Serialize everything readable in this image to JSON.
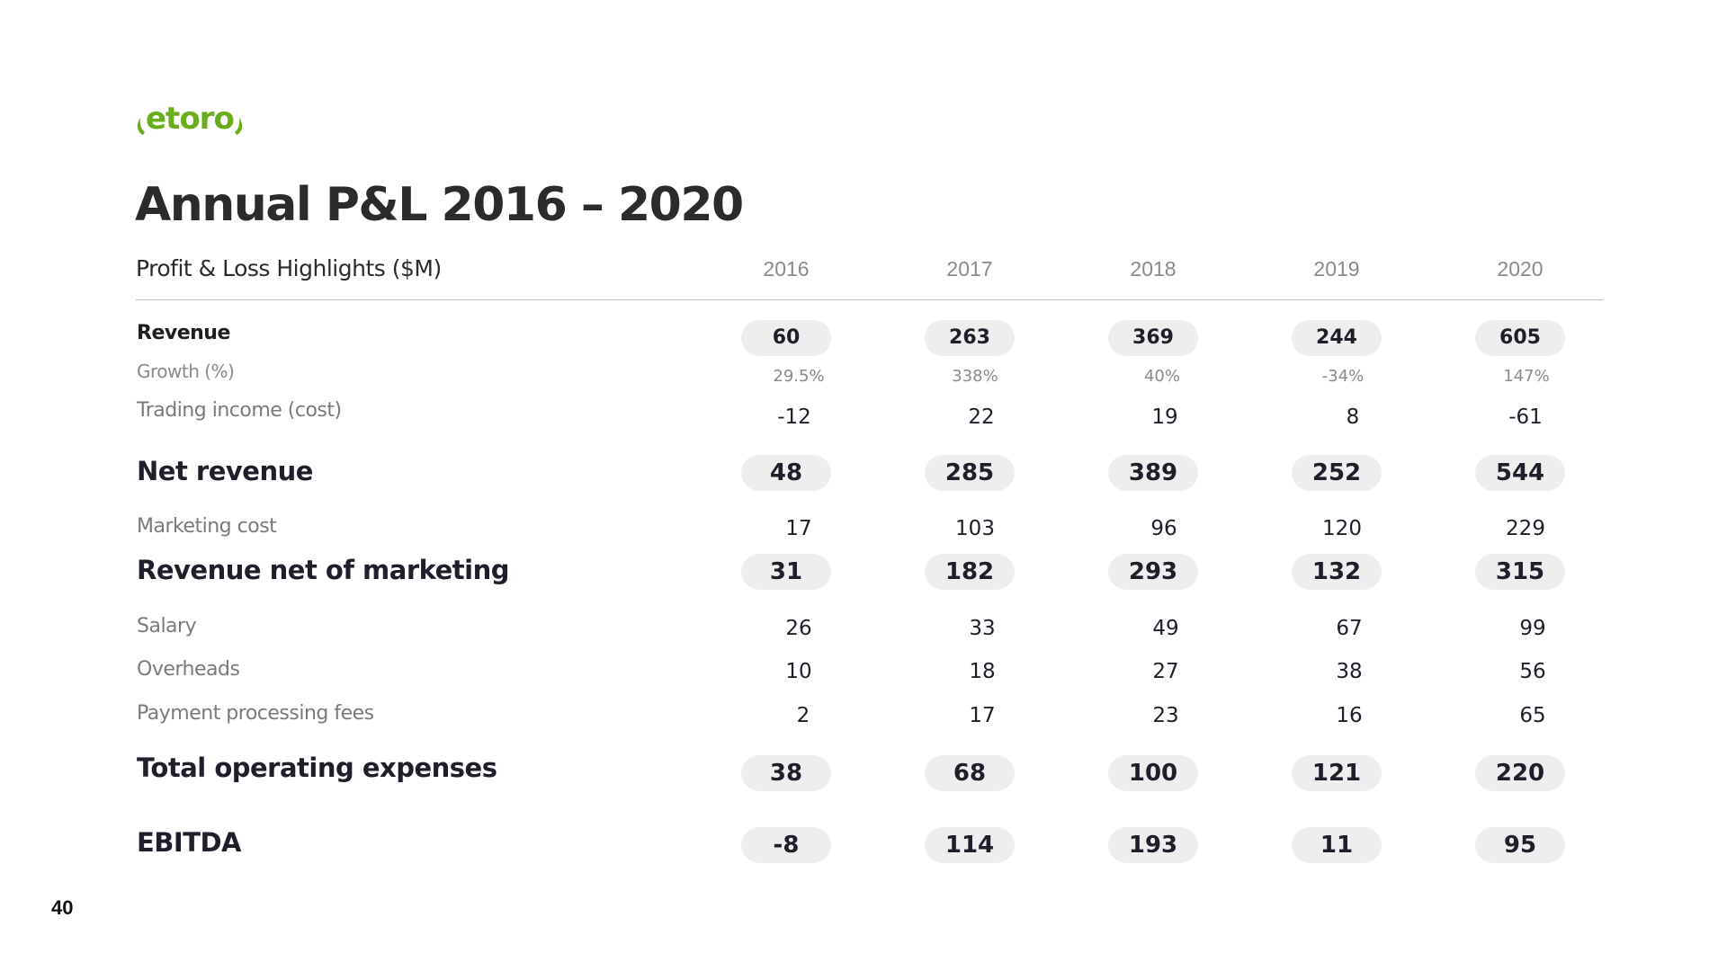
{
  "brand": {
    "logo_text": "etoro",
    "color": "#69ad1a"
  },
  "title": "Annual P&L 2016 – 2020",
  "table": {
    "header_label": "Profit & Loss Highlights ($M)",
    "years": [
      "2016",
      "2017",
      "2018",
      "2019",
      "2020"
    ],
    "rows": {
      "revenue": {
        "label": "Revenue",
        "values": [
          "60",
          "263",
          "369",
          "244",
          "605"
        ]
      },
      "growth": {
        "label": "Growth (%)",
        "values": [
          "29.5%",
          "338%",
          "40%",
          "-34%",
          "147%"
        ]
      },
      "trading_income": {
        "label": "Trading income (cost)",
        "values": [
          "-12",
          "22",
          "19",
          "8",
          "-61"
        ]
      },
      "net_revenue": {
        "label": "Net revenue",
        "values": [
          "48",
          "285",
          "389",
          "252",
          "544"
        ]
      },
      "marketing_cost": {
        "label": "Marketing cost",
        "values": [
          "17",
          "103",
          "96",
          "120",
          "229"
        ]
      },
      "revenue_net_of_marketing": {
        "label": "Revenue net of marketing",
        "values": [
          "31",
          "182",
          "293",
          "132",
          "315"
        ]
      },
      "salary": {
        "label": "Salary",
        "values": [
          "26",
          "33",
          "49",
          "67",
          "99"
        ]
      },
      "overheads": {
        "label": "Overheads",
        "values": [
          "10",
          "18",
          "27",
          "38",
          "56"
        ]
      },
      "payment_fees": {
        "label": "Payment processing fees",
        "values": [
          "2",
          "17",
          "23",
          "16",
          "65"
        ]
      },
      "total_opex": {
        "label": "Total operating expenses",
        "values": [
          "38",
          "68",
          "100",
          "121",
          "220"
        ]
      },
      "ebitda": {
        "label": "EBITDA",
        "values": [
          "-8",
          "114",
          "193",
          "11",
          "95"
        ]
      }
    }
  },
  "page_number": "40"
}
